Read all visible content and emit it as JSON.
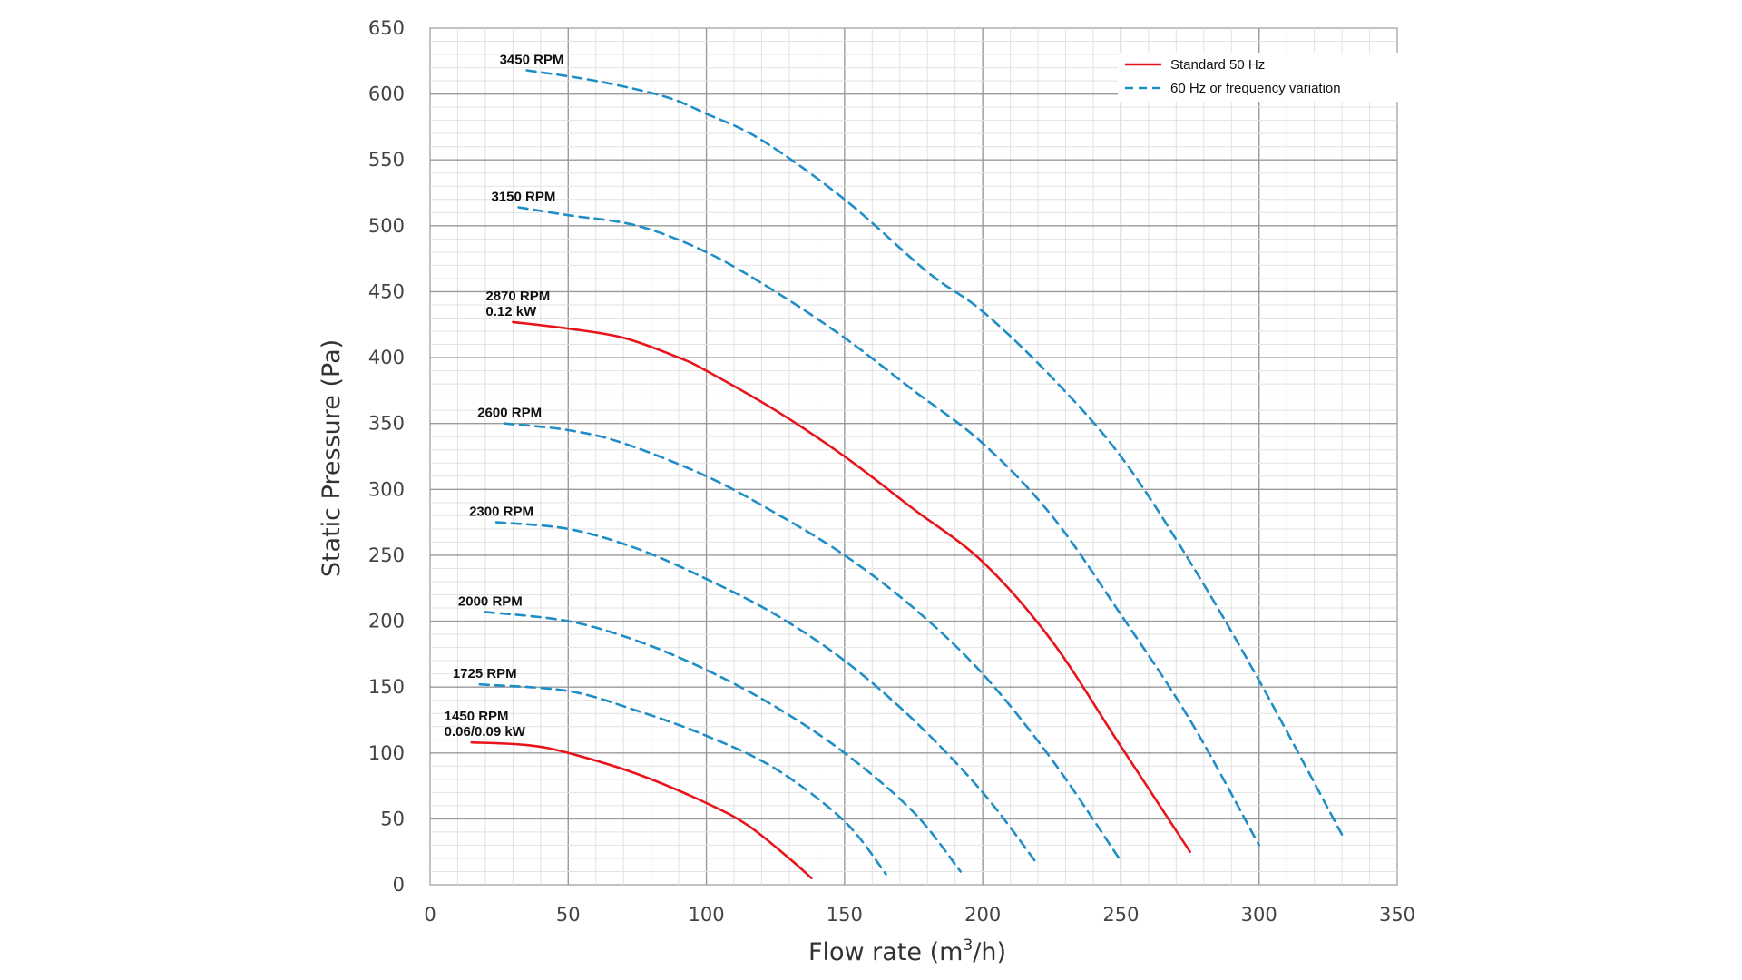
{
  "chart_data": {
    "type": "line",
    "xlabel_prefix": "Flow rate (m",
    "xlabel_sup": "3",
    "xlabel_suffix": "/h)",
    "ylabel": "Static Pressure (Pa)",
    "xlim": [
      0,
      350
    ],
    "ylim": [
      0,
      650
    ],
    "x_major_ticks": [
      0,
      50,
      100,
      150,
      200,
      250,
      300,
      350
    ],
    "y_major_ticks": [
      0,
      50,
      100,
      150,
      200,
      250,
      300,
      350,
      400,
      450,
      500,
      550,
      600,
      650
    ],
    "grid": true,
    "legend_position": "top-right",
    "legend": [
      {
        "label": "Standard 50 Hz",
        "style": "solid",
        "color": "#e8141b"
      },
      {
        "label": "60 Hz or frequency variation",
        "style": "dashed",
        "color": "#1f8ec6"
      }
    ],
    "series": [
      {
        "label_lines": [
          "3450 RPM"
        ],
        "style": "dashed",
        "color": "#1f8ec6",
        "x": [
          35,
          60,
          85,
          100,
          120,
          150,
          180,
          200,
          225,
          250,
          275,
          300,
          330
        ],
        "y": [
          618,
          610,
          598,
          585,
          565,
          520,
          465,
          435,
          385,
          325,
          245,
          155,
          38
        ]
      },
      {
        "label_lines": [
          "3150 RPM"
        ],
        "style": "dashed",
        "color": "#1f8ec6",
        "x": [
          32,
          50,
          75,
          100,
          125,
          150,
          175,
          200,
          225,
          250,
          275,
          300
        ],
        "y": [
          514,
          508,
          500,
          480,
          450,
          415,
          375,
          335,
          280,
          205,
          125,
          30
        ]
      },
      {
        "label_lines": [
          "2870 RPM",
          "0.12 kW"
        ],
        "style": "solid",
        "color": "#e8141b",
        "x": [
          30,
          50,
          70,
          90,
          100,
          125,
          150,
          175,
          200,
          225,
          250,
          275
        ],
        "y": [
          427,
          422,
          415,
          400,
          390,
          360,
          325,
          285,
          245,
          185,
          105,
          25
        ]
      },
      {
        "label_lines": [
          "2600 RPM"
        ],
        "style": "dashed",
        "color": "#1f8ec6",
        "x": [
          27,
          50,
          70,
          100,
          125,
          150,
          175,
          200,
          225,
          250
        ],
        "y": [
          350,
          345,
          335,
          310,
          282,
          250,
          210,
          160,
          95,
          18
        ]
      },
      {
        "label_lines": [
          "2300 RPM"
        ],
        "style": "dashed",
        "color": "#1f8ec6",
        "x": [
          24,
          50,
          75,
          100,
          125,
          150,
          175,
          200,
          220
        ],
        "y": [
          275,
          270,
          255,
          232,
          205,
          170,
          125,
          70,
          15
        ]
      },
      {
        "label_lines": [
          "2000 RPM"
        ],
        "style": "dashed",
        "color": "#1f8ec6",
        "x": [
          20,
          50,
          75,
          100,
          125,
          150,
          175,
          192
        ],
        "y": [
          207,
          200,
          185,
          163,
          135,
          100,
          55,
          10
        ]
      },
      {
        "label_lines": [
          "1725 RPM"
        ],
        "style": "dashed",
        "color": "#1f8ec6",
        "x": [
          18,
          50,
          75,
          100,
          125,
          150,
          165
        ],
        "y": [
          152,
          147,
          132,
          113,
          88,
          48,
          8
        ]
      },
      {
        "label_lines": [
          "1450 RPM",
          "0.06/0.09 kW"
        ],
        "style": "solid",
        "color": "#e8141b",
        "x": [
          15,
          35,
          50,
          75,
          100,
          115,
          130,
          138
        ],
        "y": [
          108,
          106,
          100,
          84,
          62,
          45,
          20,
          5
        ]
      }
    ]
  }
}
